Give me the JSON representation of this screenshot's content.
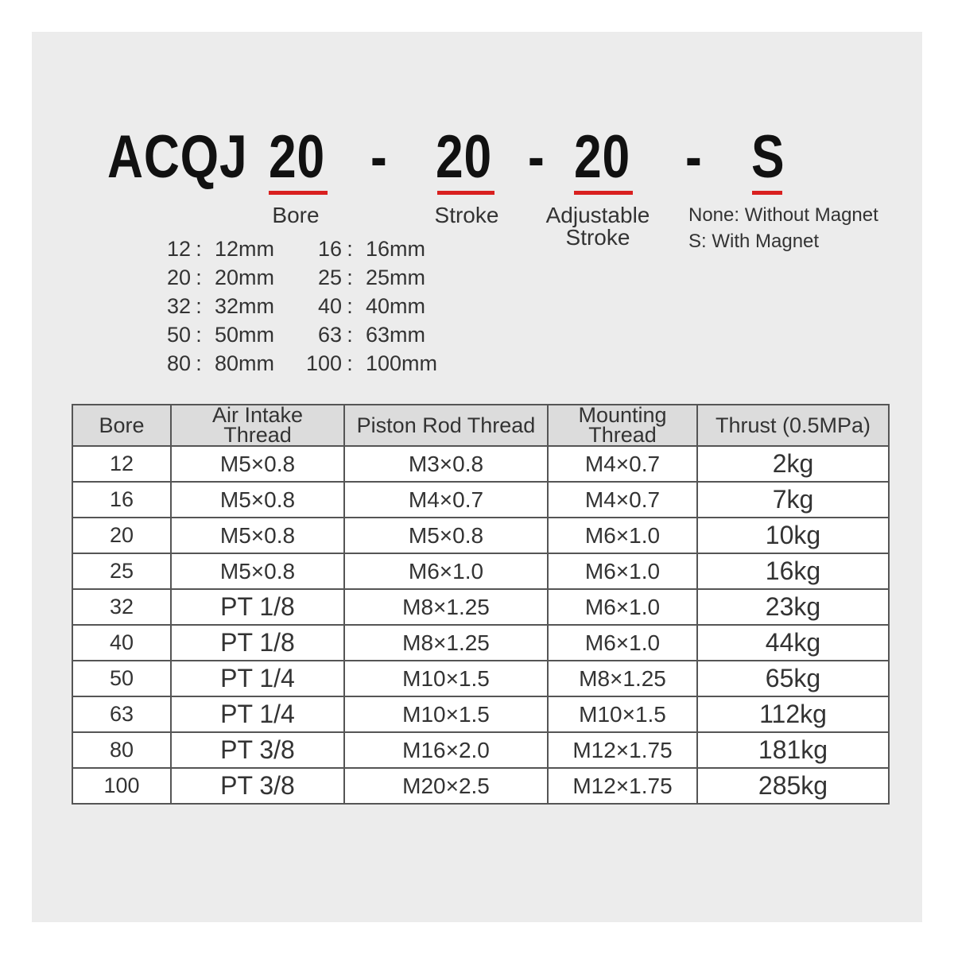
{
  "model": {
    "series": "ACQJ",
    "bore": "20",
    "stroke": "20",
    "adjustable": "20",
    "magnet": "S",
    "sep": "-"
  },
  "labels": {
    "bore": "Bore",
    "stroke": "Stroke",
    "adjustable_line1": "Adjustable",
    "adjustable_line2": "Stroke",
    "magnet_none": "None: Without Magnet",
    "magnet_s": "S: With Magnet"
  },
  "accent": "#d9201f",
  "bore_options": [
    [
      {
        "k": "12",
        "v": "12mm"
      },
      {
        "k": "16",
        "v": "16mm"
      }
    ],
    [
      {
        "k": "20",
        "v": "20mm"
      },
      {
        "k": "25",
        "v": "25mm"
      }
    ],
    [
      {
        "k": "32",
        "v": "32mm"
      },
      {
        "k": "40",
        "v": "40mm"
      }
    ],
    [
      {
        "k": "50",
        "v": "50mm"
      },
      {
        "k": "63",
        "v": "63mm"
      }
    ],
    [
      {
        "k": "80",
        "v": "80mm"
      },
      {
        "k": "100",
        "v": "100mm"
      }
    ]
  ],
  "table": {
    "headers": [
      "Bore",
      "Air Intake\nThread",
      "Piston Rod Thread",
      "Mounting\nThread",
      "Thrust (0.5MPa)"
    ],
    "rows": [
      [
        "12",
        "M5×0.8",
        "M3×0.8",
        "M4×0.7",
        "2kg"
      ],
      [
        "16",
        "M5×0.8",
        "M4×0.7",
        "M4×0.7",
        "7kg"
      ],
      [
        "20",
        "M5×0.8",
        "M5×0.8",
        "M6×1.0",
        "10kg"
      ],
      [
        "25",
        "M5×0.8",
        "M6×1.0",
        "M6×1.0",
        "16kg"
      ],
      [
        "32",
        "PT 1/8",
        "M8×1.25",
        "M6×1.0",
        "23kg"
      ],
      [
        "40",
        "PT 1/8",
        "M8×1.25",
        "M6×1.0",
        "44kg"
      ],
      [
        "50",
        "PT 1/4",
        "M10×1.5",
        "M8×1.25",
        "65kg"
      ],
      [
        "63",
        "PT 1/4",
        "M10×1.5",
        "M10×1.5",
        "112kg"
      ],
      [
        "80",
        "PT 3/8",
        "M16×2.0",
        "M12×1.75",
        "181kg"
      ],
      [
        "100",
        "PT 3/8",
        "M20×2.5",
        "M12×1.75",
        "285kg"
      ]
    ]
  }
}
